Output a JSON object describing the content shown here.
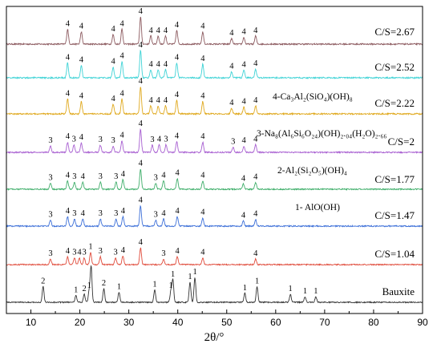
{
  "chart_data": {
    "type": "line",
    "xlabel": "2θ/°",
    "xlim": [
      5,
      90
    ],
    "x_ticks": [
      10,
      20,
      30,
      40,
      50,
      60,
      70,
      80,
      90
    ],
    "ylabel": "",
    "series": [
      {
        "name": "C/S=2.67",
        "color": "#8c5a5f",
        "baseline": 0,
        "peaks": [
          {
            "x": 17.5,
            "h": 0.55,
            "label": "4"
          },
          {
            "x": 20.3,
            "h": 0.45,
            "label": "4"
          },
          {
            "x": 26.8,
            "h": 0.35,
            "label": "4"
          },
          {
            "x": 28.6,
            "h": 0.55,
            "label": "4"
          },
          {
            "x": 32.4,
            "h": 1.0,
            "label": "4"
          },
          {
            "x": 34.5,
            "h": 0.3,
            "label": "4"
          },
          {
            "x": 36.0,
            "h": 0.3,
            "label": "4"
          },
          {
            "x": 37.5,
            "h": 0.3,
            "label": "4"
          },
          {
            "x": 39.8,
            "h": 0.5,
            "label": "4"
          },
          {
            "x": 45.1,
            "h": 0.45,
            "label": "4"
          },
          {
            "x": 51.0,
            "h": 0.2,
            "label": "4"
          },
          {
            "x": 53.5,
            "h": 0.25,
            "label": "4"
          },
          {
            "x": 55.9,
            "h": 0.3,
            "label": "4"
          }
        ]
      },
      {
        "name": "C/S=2.52",
        "color": "#3fd3d6",
        "peaks": [
          {
            "x": 17.5,
            "h": 0.55,
            "label": "4"
          },
          {
            "x": 20.3,
            "h": 0.45,
            "label": "4"
          },
          {
            "x": 26.8,
            "h": 0.4,
            "label": "4"
          },
          {
            "x": 28.6,
            "h": 0.6,
            "label": "4"
          },
          {
            "x": 32.4,
            "h": 1.0,
            "label": "4"
          },
          {
            "x": 34.5,
            "h": 0.3,
            "label": "4"
          },
          {
            "x": 36.0,
            "h": 0.3,
            "label": "4"
          },
          {
            "x": 37.5,
            "h": 0.3,
            "label": "4"
          },
          {
            "x": 39.8,
            "h": 0.55,
            "label": "4"
          },
          {
            "x": 45.1,
            "h": 0.5,
            "label": "4"
          },
          {
            "x": 51.0,
            "h": 0.22,
            "label": "4"
          },
          {
            "x": 53.5,
            "h": 0.28,
            "label": "4"
          },
          {
            "x": 55.9,
            "h": 0.32,
            "label": "4"
          }
        ]
      },
      {
        "name": "C/S=2.22",
        "color": "#e0a91e",
        "peaks": [
          {
            "x": 17.5,
            "h": 0.55,
            "label": "4"
          },
          {
            "x": 20.3,
            "h": 0.45,
            "label": "4"
          },
          {
            "x": 26.8,
            "h": 0.35,
            "label": "4"
          },
          {
            "x": 28.6,
            "h": 0.55,
            "label": "4"
          },
          {
            "x": 32.4,
            "h": 1.0,
            "label": "4"
          },
          {
            "x": 34.5,
            "h": 0.3,
            "label": "4"
          },
          {
            "x": 36.0,
            "h": 0.3,
            "label": "4"
          },
          {
            "x": 37.5,
            "h": 0.3,
            "label": "4"
          },
          {
            "x": 39.8,
            "h": 0.5,
            "label": "4"
          },
          {
            "x": 45.1,
            "h": 0.45,
            "label": "4"
          },
          {
            "x": 51.0,
            "h": 0.2,
            "label": "4"
          },
          {
            "x": 53.5,
            "h": 0.25,
            "label": "4"
          },
          {
            "x": 55.9,
            "h": 0.3,
            "label": "4"
          }
        ]
      },
      {
        "name": "C/S=2",
        "color": "#a85fd1",
        "peaks": [
          {
            "x": 14.0,
            "h": 0.25,
            "label": "3"
          },
          {
            "x": 17.5,
            "h": 0.4,
            "label": "4"
          },
          {
            "x": 18.8,
            "h": 0.3,
            "label": "3"
          },
          {
            "x": 20.3,
            "h": 0.38,
            "label": "4"
          },
          {
            "x": 24.2,
            "h": 0.28,
            "label": "3"
          },
          {
            "x": 26.8,
            "h": 0.25,
            "label": "3"
          },
          {
            "x": 28.6,
            "h": 0.45,
            "label": "4"
          },
          {
            "x": 32.4,
            "h": 0.9,
            "label": "4"
          },
          {
            "x": 34.8,
            "h": 0.28,
            "label": "3"
          },
          {
            "x": 36.2,
            "h": 0.3,
            "label": "4"
          },
          {
            "x": 37.6,
            "h": 0.3,
            "label": "3"
          },
          {
            "x": 39.8,
            "h": 0.42,
            "label": "4"
          },
          {
            "x": 45.1,
            "h": 0.4,
            "label": "4"
          },
          {
            "x": 51.3,
            "h": 0.2,
            "label": "3"
          },
          {
            "x": 53.5,
            "h": 0.25,
            "label": "4"
          },
          {
            "x": 55.9,
            "h": 0.3,
            "label": "4"
          }
        ]
      },
      {
        "name": "C/S=1.77",
        "color": "#3fae6a",
        "peaks": [
          {
            "x": 14.0,
            "h": 0.25,
            "label": "3"
          },
          {
            "x": 17.5,
            "h": 0.35,
            "label": "4"
          },
          {
            "x": 18.9,
            "h": 0.3,
            "label": "3"
          },
          {
            "x": 20.6,
            "h": 0.3,
            "label": "4"
          },
          {
            "x": 24.2,
            "h": 0.3,
            "label": "3"
          },
          {
            "x": 27.4,
            "h": 0.3,
            "label": "3"
          },
          {
            "x": 28.8,
            "h": 0.4,
            "label": "4"
          },
          {
            "x": 32.4,
            "h": 0.85,
            "label": "4"
          },
          {
            "x": 35.5,
            "h": 0.25,
            "label": "3"
          },
          {
            "x": 37.1,
            "h": 0.35,
            "label": "4"
          },
          {
            "x": 39.9,
            "h": 0.45,
            "label": "4"
          },
          {
            "x": 45.1,
            "h": 0.35,
            "label": "4"
          },
          {
            "x": 53.4,
            "h": 0.22,
            "label": "4"
          },
          {
            "x": 55.9,
            "h": 0.28,
            "label": "4"
          }
        ]
      },
      {
        "name": "C/S=1.47",
        "color": "#3c6fd8",
        "peaks": [
          {
            "x": 14.0,
            "h": 0.25,
            "label": "3"
          },
          {
            "x": 17.5,
            "h": 0.4,
            "label": "4"
          },
          {
            "x": 18.9,
            "h": 0.3,
            "label": "3"
          },
          {
            "x": 20.6,
            "h": 0.3,
            "label": "4"
          },
          {
            "x": 24.2,
            "h": 0.3,
            "label": "3"
          },
          {
            "x": 27.4,
            "h": 0.3,
            "label": "3"
          },
          {
            "x": 28.8,
            "h": 0.4,
            "label": "4"
          },
          {
            "x": 32.4,
            "h": 0.85,
            "label": "4"
          },
          {
            "x": 35.5,
            "h": 0.25,
            "label": "3"
          },
          {
            "x": 37.1,
            "h": 0.3,
            "label": "4"
          },
          {
            "x": 39.9,
            "h": 0.4,
            "label": "4"
          },
          {
            "x": 45.1,
            "h": 0.35,
            "label": "4"
          },
          {
            "x": 53.4,
            "h": 0.22,
            "label": "4"
          },
          {
            "x": 55.9,
            "h": 0.28,
            "label": "4"
          }
        ]
      },
      {
        "name": "C/S=1.04",
        "color": "#e04b3b",
        "peaks": [
          {
            "x": 14.0,
            "h": 0.25,
            "label": "3"
          },
          {
            "x": 17.5,
            "h": 0.35,
            "label": "4"
          },
          {
            "x": 18.9,
            "h": 0.3,
            "label": "3"
          },
          {
            "x": 19.9,
            "h": 0.3,
            "label": "4"
          },
          {
            "x": 20.9,
            "h": 0.3,
            "label": "3"
          },
          {
            "x": 22.2,
            "h": 0.55,
            "label": "1"
          },
          {
            "x": 24.2,
            "h": 0.35,
            "label": "3"
          },
          {
            "x": 27.3,
            "h": 0.3,
            "label": "3"
          },
          {
            "x": 28.8,
            "h": 0.4,
            "label": "4"
          },
          {
            "x": 32.4,
            "h": 0.75,
            "label": "4"
          },
          {
            "x": 37.1,
            "h": 0.25,
            "label": "3"
          },
          {
            "x": 39.9,
            "h": 0.35,
            "label": "4"
          },
          {
            "x": 45.1,
            "h": 0.3,
            "label": "4"
          },
          {
            "x": 55.9,
            "h": 0.25,
            "label": "4"
          }
        ]
      },
      {
        "name": "Bauxite",
        "color": "#333333",
        "peaks": [
          {
            "x": 12.5,
            "h": 0.7,
            "label": "2"
          },
          {
            "x": 19.2,
            "h": 0.3,
            "label": "1"
          },
          {
            "x": 20.9,
            "h": 0.35,
            "label": "2"
          },
          {
            "x": 21.9,
            "h": 0.5,
            "label": "1"
          },
          {
            "x": 22.3,
            "h": 1.6,
            "label": ""
          },
          {
            "x": 24.9,
            "h": 0.6,
            "label": "2"
          },
          {
            "x": 28.0,
            "h": 0.45,
            "label": "1"
          },
          {
            "x": 35.3,
            "h": 0.55,
            "label": "1"
          },
          {
            "x": 38.6,
            "h": 0.5,
            "label": "1"
          },
          {
            "x": 39.0,
            "h": 1.0,
            "label": "1"
          },
          {
            "x": 42.5,
            "h": 0.9,
            "label": "1"
          },
          {
            "x": 43.5,
            "h": 1.1,
            "label": "1"
          },
          {
            "x": 53.7,
            "h": 0.4,
            "label": "1"
          },
          {
            "x": 56.2,
            "h": 0.7,
            "label": "1"
          },
          {
            "x": 63.0,
            "h": 0.35,
            "label": "1"
          },
          {
            "x": 66.0,
            "h": 0.25,
            "label": "1"
          },
          {
            "x": 68.2,
            "h": 0.25,
            "label": "1"
          }
        ]
      }
    ],
    "phase_legend": [
      "4-Ca₃Al₂(SiO₄)(OH)₈",
      "3-Na₈(Al₆Si₆O₂₄)(OH)₂.₀₄(H₂O)₂.₆₆",
      "2-Al₂(Si₂O₅)(OH)₄",
      "1- AlO(OH)"
    ],
    "grid": false
  }
}
